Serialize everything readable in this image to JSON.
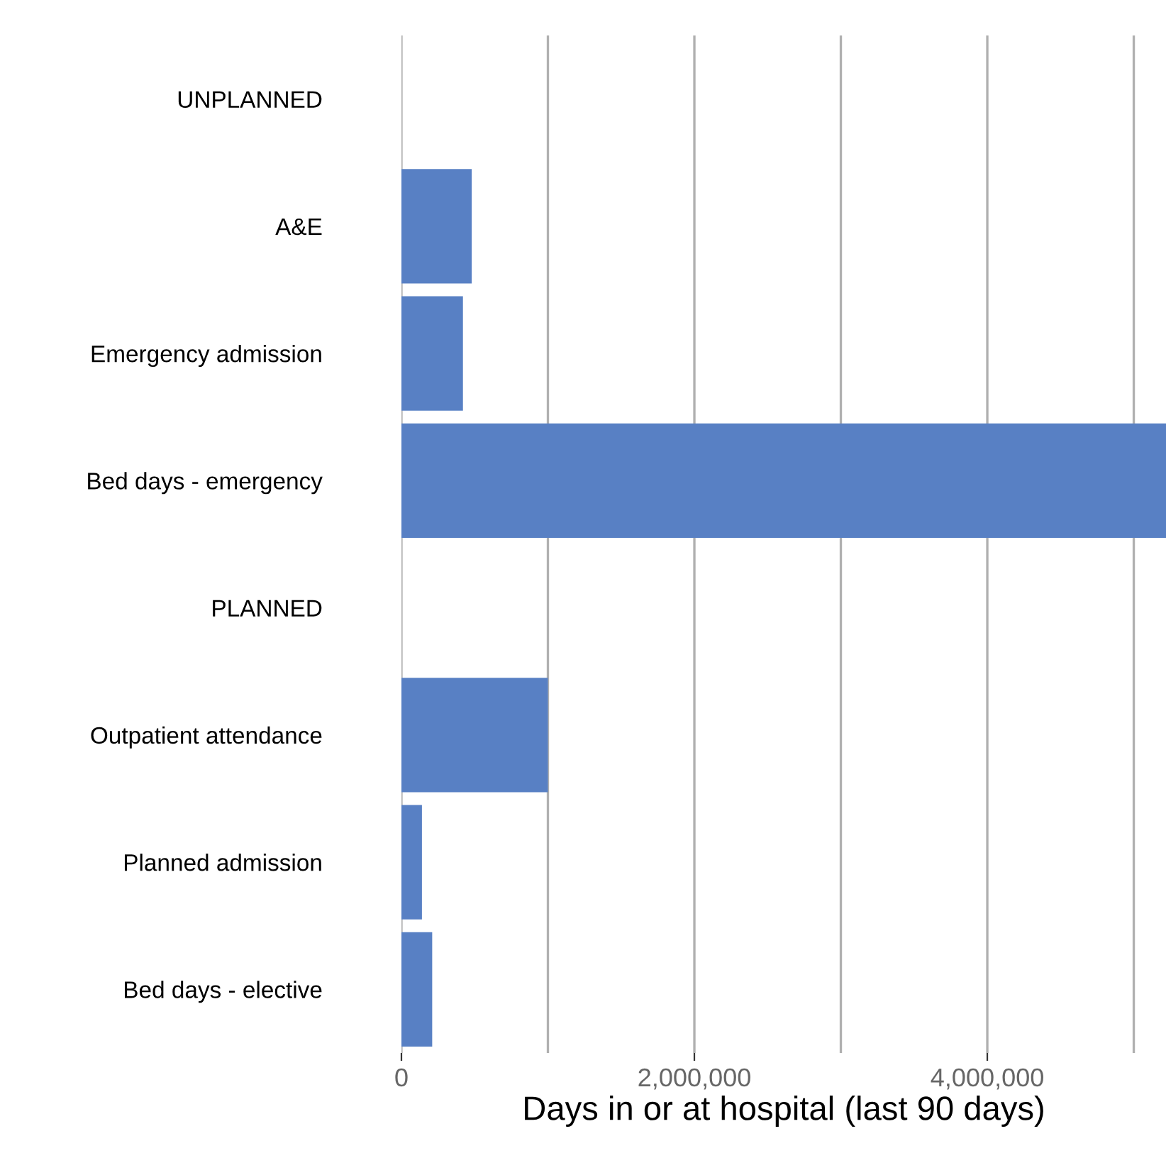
{
  "chart_data": {
    "type": "bar",
    "orientation": "horizontal",
    "xlabel": "Days in or at hospital (last 90 days)",
    "categories": [
      "UNPLANNED",
      "A&E",
      "Emergency admission",
      "Bed days - emergency",
      "PLANNED",
      "Outpatient attendance",
      "Planned admission",
      "Bed days - elective"
    ],
    "values": [
      null,
      480000,
      420000,
      5220000,
      null,
      1000000,
      140000,
      210000
    ],
    "color": "#5880c4",
    "xlim": [
      0,
      5220000
    ],
    "xticks": [
      {
        "value": 0,
        "label": "0"
      },
      {
        "value": 1000000,
        "label": null
      },
      {
        "value": 2000000,
        "label": "2,000,000"
      },
      {
        "value": 3000000,
        "label": null
      },
      {
        "value": 4000000,
        "label": "4,000,000"
      },
      {
        "value": 5000000,
        "label": null
      }
    ],
    "grid": "x"
  }
}
